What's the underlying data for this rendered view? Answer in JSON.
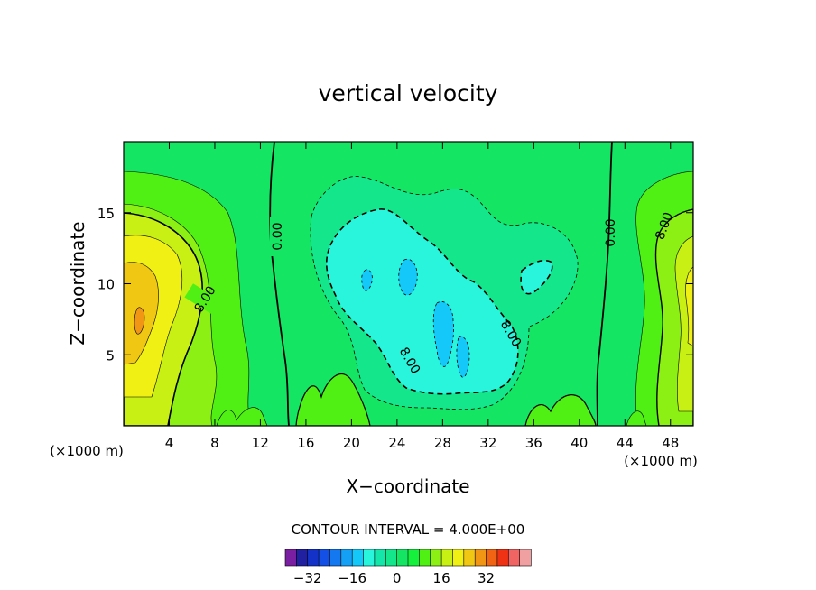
{
  "chart_data": {
    "type": "heatmap",
    "title": "vertical velocity",
    "xlabel": "X−coordinate",
    "ylabel": "Z−coordinate",
    "x_unit_left": "(×1000 m)",
    "x_unit_right": "(×1000 m)",
    "xlim": [
      0,
      50
    ],
    "ylim": [
      0,
      20
    ],
    "x_ticks": [
      "4",
      "8",
      "12",
      "16",
      "20",
      "24",
      "28",
      "32",
      "36",
      "40",
      "44",
      "48"
    ],
    "y_ticks": [
      "5",
      "10",
      "15"
    ],
    "contour_interval_label": "CONTOUR INTERVAL = 4.000E+00",
    "contour_labels": [
      "0.00",
      "8.00",
      "0.00",
      "8.00",
      "8.00",
      "8.00",
      "0.00",
      "8.00"
    ],
    "colorbar": {
      "ticks": [
        "−32",
        "−16",
        "0",
        "16",
        "32"
      ],
      "colors": [
        "#7a1fa2",
        "#2020a0",
        "#1432c8",
        "#1450e6",
        "#1478f0",
        "#14a0f5",
        "#14c8fa",
        "#28f5dc",
        "#14e6aa",
        "#14e68c",
        "#14e664",
        "#14f03c",
        "#50f014",
        "#8cf014",
        "#c8f014",
        "#f0f014",
        "#f0c814",
        "#f09614",
        "#f06414",
        "#f03214",
        "#f06464",
        "#f0a0a0"
      ]
    }
  }
}
